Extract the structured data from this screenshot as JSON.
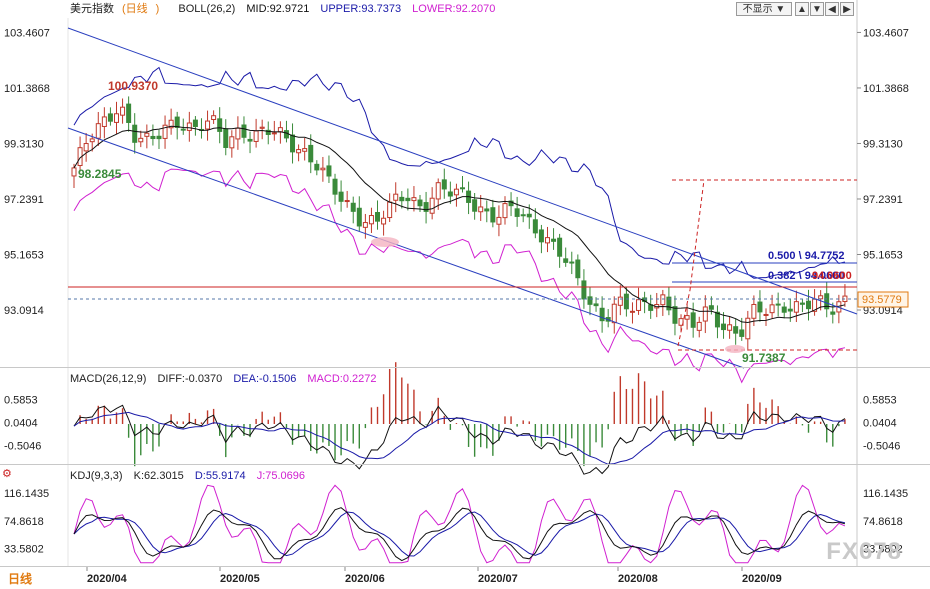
{
  "main": {
    "symbol": "美元指数",
    "period": "日线",
    "boll": "BOLL(26,2)",
    "mid": "MID:92.9721",
    "upper": "UPPER:93.7373",
    "lower": "LOWER:92.2070",
    "hide_select": "不显示",
    "price_ticks": [
      "103.4607",
      "101.3868",
      "99.3130",
      "97.2391",
      "95.1653",
      "93.0914"
    ],
    "current_price": "93.5779",
    "annotations": {
      "high": "100.9370",
      "low_left": "98.2845",
      "low_right": "91.7387",
      "fib_500": "0.500 \\ 94.7752",
      "fib_382": "0.382 \\ 94.0600",
      "fib_382_overlap": "94.0600"
    }
  },
  "macd": {
    "title": "MACD(26,12,9)",
    "diff": "DIFF:-0.0370",
    "dea": "DEA:-0.1506",
    "macd": "MACD:0.2272",
    "ticks": [
      "0.5853",
      "0.0404",
      "-0.5046"
    ]
  },
  "kdj": {
    "title": "KDJ(9,3,3)",
    "k": "K:62.3015",
    "d": "D:55.9174",
    "j": "J:75.0696",
    "ticks": [
      "116.1435",
      "74.8618",
      "33.5802"
    ]
  },
  "x_axis": {
    "period_button": "日线",
    "labels": [
      "2020/04",
      "2020/05",
      "2020/06",
      "2020/07",
      "2020/08",
      "2020/09"
    ]
  },
  "watermark": "FX678",
  "colors": {
    "candle_up": "#c0392b",
    "candle_down": "#3a8a3a",
    "boll_mid": "#111111",
    "boll_upper": "#1a1aa8",
    "boll_lower": "#d020d0",
    "trendline": "#2a3fbf",
    "resistance": "#cc2222",
    "current": "#e07a10"
  },
  "chart_data": {
    "type": "candlestick",
    "y_range": [
      91.0,
      104.0
    ],
    "approx_close_path": [
      98.4,
      99.4,
      100.1,
      100.9,
      99.6,
      99.2,
      99.9,
      100.3,
      99.8,
      100.1,
      99.4,
      99.9,
      99.6,
      99.7,
      99.5,
      99.2,
      98.6,
      97.6,
      97.0,
      96.6,
      96.4,
      96.9,
      97.4,
      97.0,
      97.6,
      97.4,
      97.3,
      96.9,
      96.6,
      96.8,
      96.4,
      96.0,
      95.4,
      94.4,
      93.4,
      92.9,
      93.4,
      93.0,
      93.3,
      93.6,
      92.7,
      92.4,
      93.1,
      92.6,
      92.2,
      92.9,
      93.1,
      93.4,
      93.2,
      93.3,
      93.1,
      93.6
    ]
  }
}
